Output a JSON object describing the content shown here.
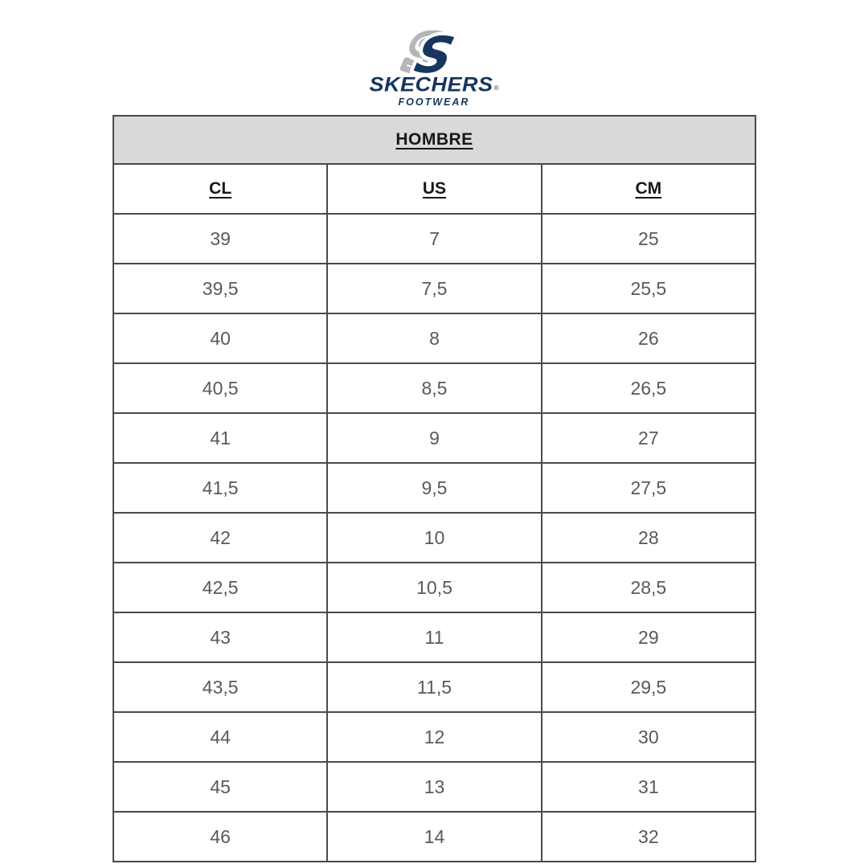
{
  "logo": {
    "emblem": "skechers-s-monogram",
    "brand": "SKECHERS",
    "registered_mark": "®",
    "sub_brand": "FOOTWEAR",
    "colors": {
      "navy": "#16355f",
      "silver": "#b3b6b9"
    }
  },
  "table": {
    "title": "HOMBRE",
    "columns": [
      "CL",
      "US",
      "CM"
    ],
    "rows": [
      [
        "39",
        "7",
        "25"
      ],
      [
        "39,5",
        "7,5",
        "25,5"
      ],
      [
        "40",
        "8",
        "26"
      ],
      [
        "40,5",
        "8,5",
        "26,5"
      ],
      [
        "41",
        "9",
        "27"
      ],
      [
        "41,5",
        "9,5",
        "27,5"
      ],
      [
        "42",
        "10",
        "28"
      ],
      [
        "42,5",
        "10,5",
        "28,5"
      ],
      [
        "43",
        "11",
        "29"
      ],
      [
        "43,5",
        "11,5",
        "29,5"
      ],
      [
        "44",
        "12",
        "30"
      ],
      [
        "45",
        "13",
        "31"
      ],
      [
        "46",
        "14",
        "32"
      ]
    ],
    "colors": {
      "header_bg": "#d9d9d9",
      "border": "#4a4a4a",
      "cell_text": "#595959"
    }
  }
}
